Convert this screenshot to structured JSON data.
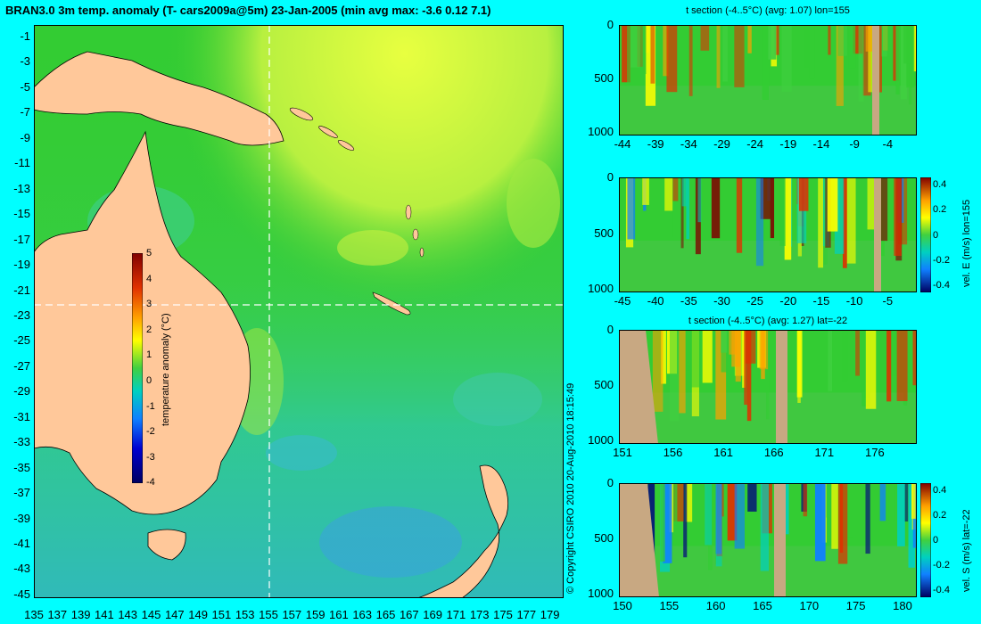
{
  "main_map": {
    "title": "BRAN3.0 3m temp. anomaly (T- cars2009a@5m) 23-Jan-2005 (min avg max: -3.6 0.12 7.1)",
    "colorbar_label": "temperature anomaly (°C)",
    "colorbar_ticks": [
      "5",
      "4",
      "3",
      "2",
      "1",
      "0",
      "-1",
      "-2",
      "-3",
      "-4"
    ],
    "lat_ticks": [
      "-1",
      "-3",
      "-5",
      "-7",
      "-9",
      "-11",
      "-13",
      "-15",
      "-17",
      "-19",
      "-21",
      "-23",
      "-25",
      "-27",
      "-29",
      "-31",
      "-33",
      "-35",
      "-37",
      "-39",
      "-41",
      "-43",
      "-45"
    ],
    "lon_ticks": [
      "135",
      "137",
      "139",
      "141",
      "143",
      "145",
      "147",
      "149",
      "151",
      "153",
      "155",
      "157",
      "159",
      "161",
      "163",
      "165",
      "167",
      "169",
      "171",
      "173",
      "175",
      "177",
      "179"
    ],
    "crosshair_lon": 155,
    "crosshair_lat": -22,
    "colors": {
      "land": "#ffc89a",
      "ocean_base": "#33cc33",
      "background": "#00ffff"
    }
  },
  "copyright": "© Copyright CSIRO 2010 20-Aug-2010 18:15:49",
  "panels": [
    {
      "title": "t section (-4..5°C) (avg: 1.07) lon=155",
      "y_ticks": [
        "0",
        "500",
        "1000"
      ],
      "x_ticks": [
        "-44",
        "-39",
        "-34",
        "-29",
        "-24",
        "-19",
        "-14",
        "-9",
        "-4"
      ],
      "colorbar": false
    },
    {
      "title": "",
      "y_ticks": [
        "0",
        "500",
        "1000"
      ],
      "x_ticks": [
        "-45",
        "-40",
        "-35",
        "-30",
        "-25",
        "-20",
        "-15",
        "-10",
        "-5"
      ],
      "colorbar": true,
      "colorbar_ticks": [
        "0.4",
        "0.2",
        "0",
        "-0.2",
        "-0.4"
      ],
      "colorbar_label": "vel. E (m/s) lon=155"
    },
    {
      "title": "t section (-4..5°C) (avg: 1.27) lat=-22",
      "y_ticks": [
        "0",
        "500",
        "1000"
      ],
      "x_ticks": [
        "151",
        "156",
        "161",
        "166",
        "171",
        "176"
      ],
      "colorbar": false
    },
    {
      "title": "",
      "y_ticks": [
        "0",
        "500",
        "1000"
      ],
      "x_ticks": [
        "150",
        "155",
        "160",
        "165",
        "170",
        "175",
        "180"
      ],
      "colorbar": true,
      "colorbar_ticks": [
        "0.4",
        "0.2",
        "0",
        "-0.2",
        "-0.4"
      ],
      "colorbar_label": "vel. S (m/s) lat=-22"
    }
  ]
}
